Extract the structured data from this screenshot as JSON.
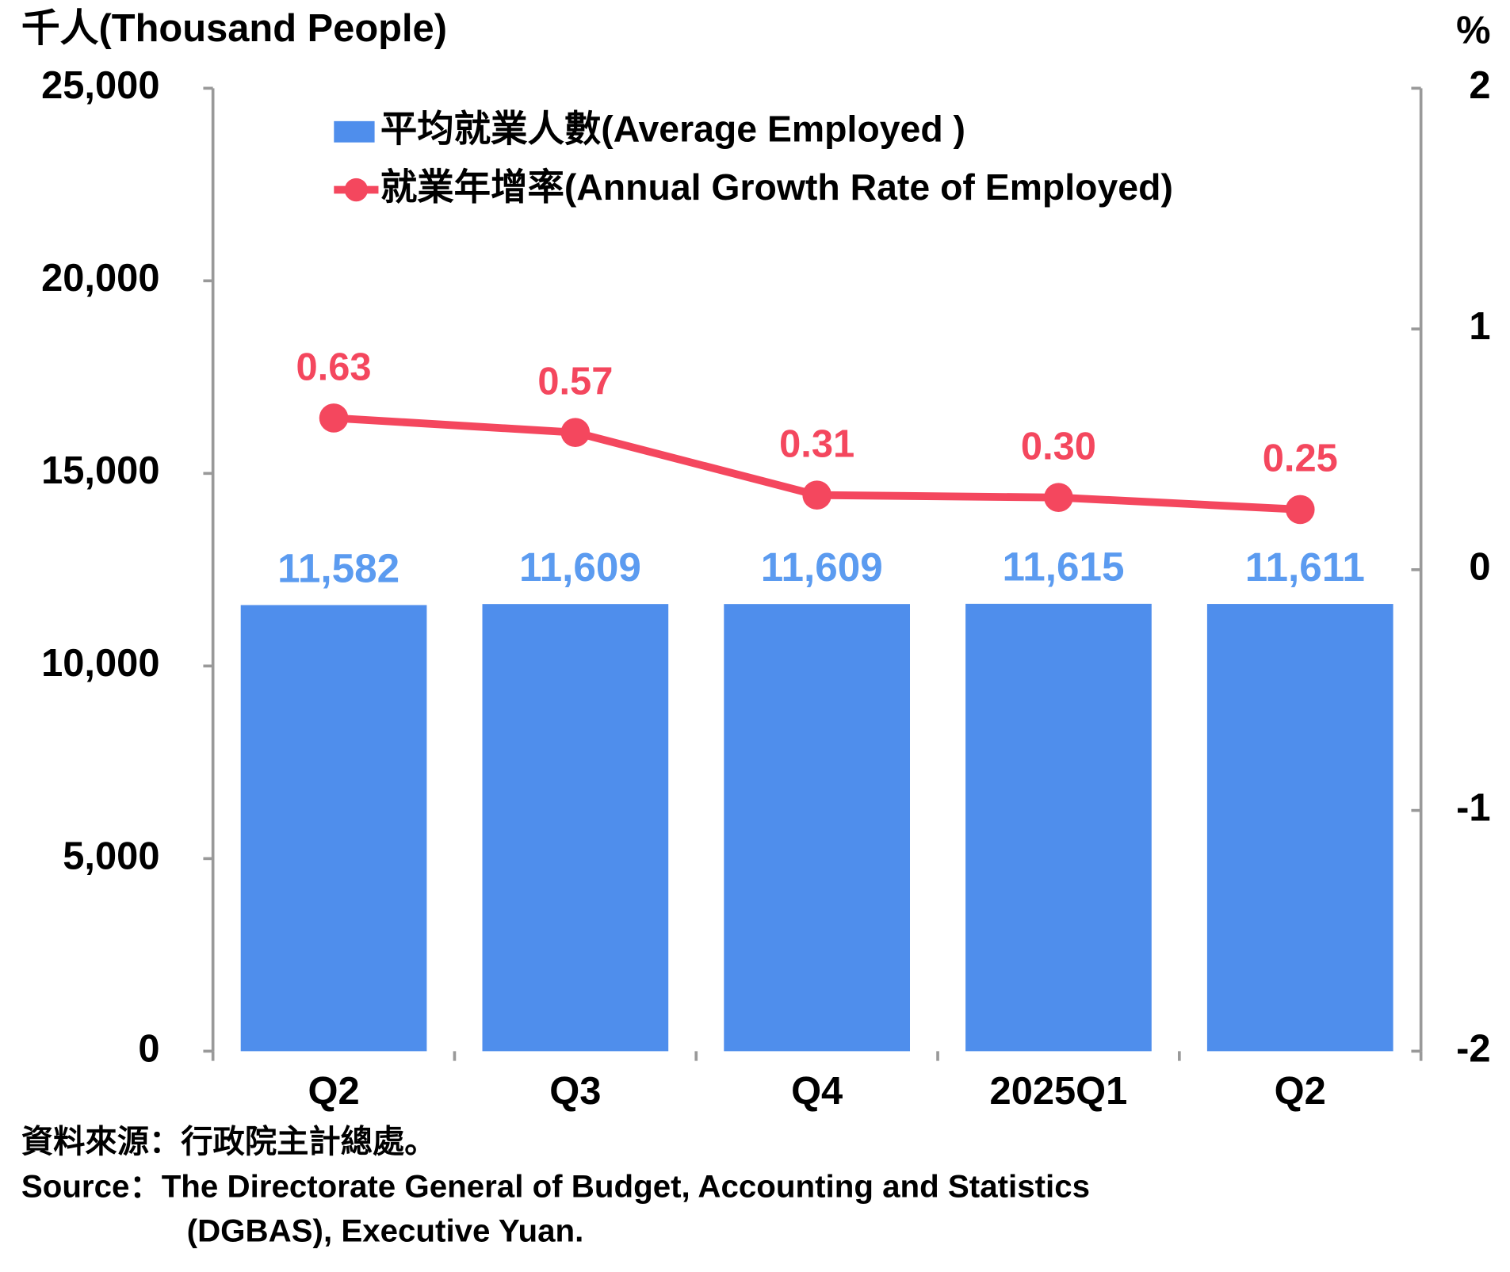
{
  "chart_data": {
    "type": "bar",
    "y_label": "千人(Thousand People)",
    "y2_label": "%",
    "categories": [
      "Q2",
      "Q3",
      "Q4",
      "2025Q1",
      "Q2"
    ],
    "series": [
      {
        "name": "平均就業人數(Average Employed )",
        "type": "bar",
        "color": "#4f8eec",
        "label_color": "#5b9bf0",
        "values": [
          11582,
          11609,
          11609,
          11615,
          11611
        ],
        "value_labels": [
          "11,582",
          "11,609",
          "11,609",
          "11,615",
          "11,611"
        ]
      },
      {
        "name": "就業年增率(Annual Growth Rate of Employed)",
        "type": "line",
        "axis": "y2",
        "color": "#f4475e",
        "label_color": "#f4475e",
        "values": [
          0.63,
          0.57,
          0.31,
          0.3,
          0.25
        ],
        "value_labels": [
          "0.63",
          "0.57",
          "0.31",
          "0.30",
          "0.25"
        ]
      }
    ],
    "ylim": [
      0,
      25000
    ],
    "yticks": [
      0,
      {
        "value": 5000,
        "label": "5,000"
      },
      {
        "value": 10000,
        "label": "10,000"
      },
      {
        "value": 15000,
        "label": "15,000"
      },
      {
        "value": 20000,
        "label": "20,000"
      },
      {
        "value": 25000,
        "label": "25,000"
      }
    ],
    "y2lim": [
      -2,
      2
    ],
    "y2ticks": [
      -2,
      -1,
      0,
      1,
      2
    ],
    "grid": false,
    "legend": "top-left",
    "source": [
      "資料來源：行政院主計總處。",
      "Source：The Directorate General of Budget, Accounting and Statistics",
      "(DGBAS), Executive Yuan."
    ]
  }
}
